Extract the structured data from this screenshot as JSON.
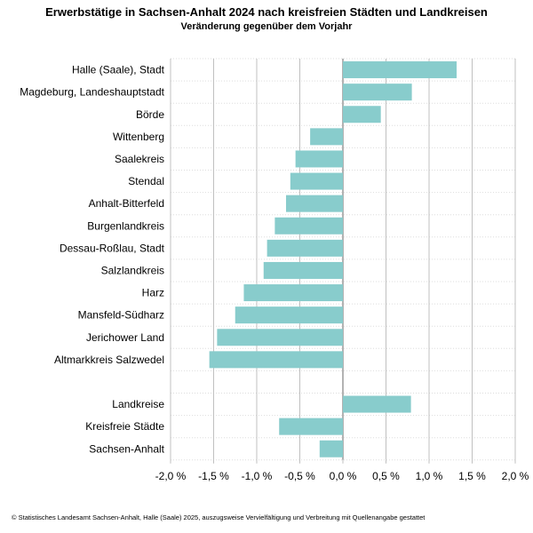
{
  "chart_data": {
    "type": "bar",
    "orientation": "horizontal",
    "title": "Erwerbstätige in Sachsen-Anhalt 2024 nach kreisfreien Städten und Landkreisen",
    "subtitle": "Veränderung gegenüber dem Vorjahr",
    "categories": [
      "Halle (Saale), Stadt",
      "Magdeburg, Landeshauptstadt",
      "Börde",
      "Wittenberg",
      "Saalekreis",
      "Stendal",
      "Anhalt-Bitterfeld",
      "Burgenlandkreis",
      "Dessau-Roßlau, Stadt",
      "Salzlandkreis",
      "Harz",
      "Mansfeld-Südharz",
      "Jerichower Land",
      "Altmarkkreis Salzwedel",
      "",
      "Landkreise",
      "Kreisfreie Städte",
      "Sachsen-Anhalt"
    ],
    "values": [
      1.32,
      0.8,
      0.44,
      -0.38,
      -0.55,
      -0.61,
      -0.66,
      -0.79,
      -0.88,
      -0.92,
      -1.15,
      -1.25,
      -1.46,
      -1.55,
      null,
      0.79,
      -0.74,
      -0.27
    ],
    "xlim": [
      -2.0,
      2.0
    ],
    "xticks": [
      "-2,0 %",
      "-1,5 %",
      "-1,0 %",
      "-0,5 %",
      "0,0 %",
      "0,5 %",
      "1,0 %",
      "1,5 %",
      "2,0 %"
    ],
    "xtick_values": [
      -2.0,
      -1.5,
      -1.0,
      -0.5,
      0.0,
      0.5,
      1.0,
      1.5,
      2.0
    ],
    "grid": true,
    "bar_color": "#88cccc",
    "gridline_color": "#c0c0c0",
    "zero_line_color": "#808080"
  },
  "footer": {
    "copyright": "© Statistisches Landesamt Sachsen-Anhalt, Halle (Saale) 2025, auszugsweise Vervielfältigung und Verbreitung mit Quellenangabe gestattet"
  }
}
